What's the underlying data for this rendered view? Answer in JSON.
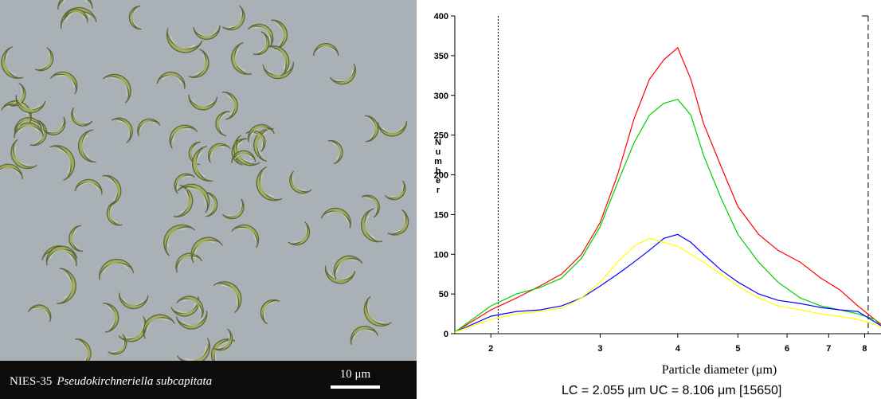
{
  "figure": {
    "micrograph": {
      "strain": "NIES-35",
      "species": "Pseudokirchneriella subcapitata",
      "scale_bar": "10 μm"
    },
    "footer": "LC = 2.055 μm  UC = 8.106 μm [15650]"
  },
  "colors": {
    "red": "#ff0000",
    "green": "#00d000",
    "blue": "#0000ff",
    "yellow": "#ffff00",
    "micrograph_bg": "#a9b1b6",
    "cell": "#a2ab5f",
    "cell_edge": "#5c6530"
  },
  "chart_data": {
    "type": "line",
    "title": "",
    "xlabel": "Particle diameter (μm)",
    "ylabel": "Number",
    "x_scale": "log",
    "xlim": [
      1.75,
      8.5
    ],
    "ylim": [
      0,
      400
    ],
    "xticks": [
      2,
      3,
      4,
      5,
      6,
      7,
      8
    ],
    "yticks": [
      0,
      50,
      100,
      150,
      200,
      250,
      300,
      350,
      400
    ],
    "grid": false,
    "legend": "none",
    "markers": {
      "LC": 2.055,
      "UC": 8.106
    },
    "x": [
      1.75,
      2.0,
      2.2,
      2.4,
      2.6,
      2.8,
      3.0,
      3.2,
      3.4,
      3.6,
      3.8,
      4.0,
      4.2,
      4.4,
      4.7,
      5.0,
      5.4,
      5.8,
      6.3,
      6.8,
      7.3,
      7.8,
      8.3,
      8.5
    ],
    "series": [
      {
        "color": "red",
        "values": [
          2,
          30,
          45,
          60,
          75,
          100,
          140,
          200,
          270,
          320,
          345,
          360,
          320,
          265,
          210,
          160,
          125,
          105,
          90,
          70,
          55,
          35,
          18,
          12
        ]
      },
      {
        "color": "green",
        "values": [
          2,
          35,
          50,
          58,
          70,
          95,
          135,
          190,
          240,
          275,
          290,
          295,
          275,
          225,
          170,
          125,
          90,
          65,
          45,
          35,
          30,
          25,
          18,
          10
        ]
      },
      {
        "color": "blue",
        "values": [
          2,
          22,
          28,
          30,
          35,
          45,
          60,
          75,
          90,
          105,
          120,
          125,
          115,
          100,
          80,
          65,
          50,
          42,
          38,
          33,
          30,
          28,
          15,
          10
        ]
      },
      {
        "color": "yellow",
        "values": [
          2,
          18,
          25,
          28,
          32,
          45,
          65,
          90,
          110,
          120,
          115,
          110,
          100,
          90,
          75,
          60,
          45,
          35,
          30,
          25,
          22,
          18,
          12,
          8
        ]
      }
    ]
  }
}
